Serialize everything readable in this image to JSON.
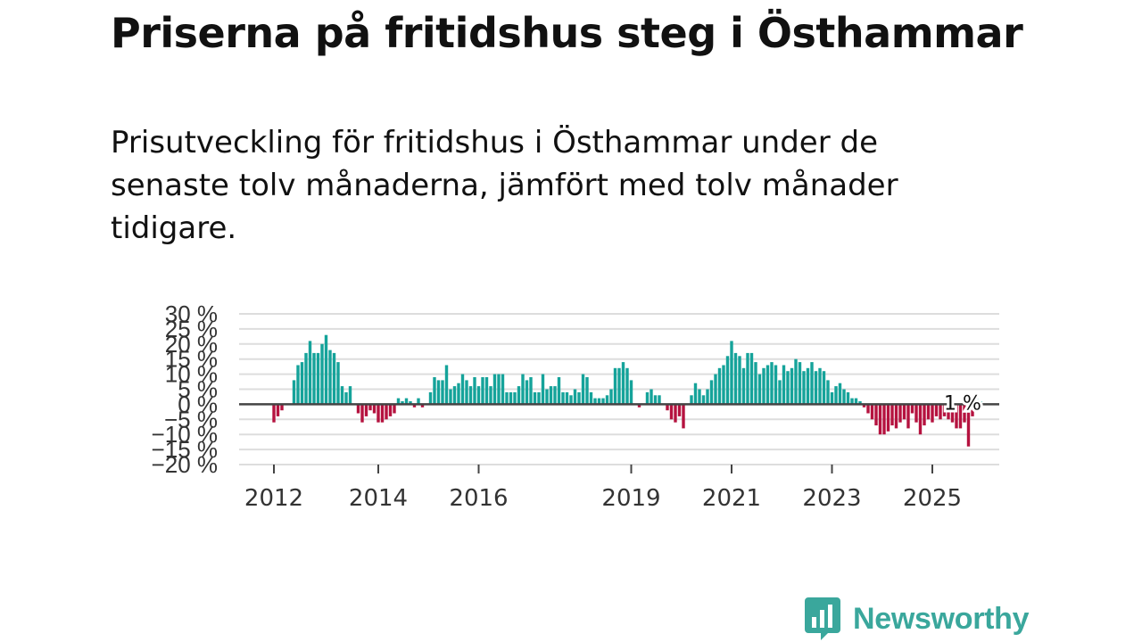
{
  "title": "Priserna på fritidshus steg i Östhammar",
  "subtitle": "Prisutveckling för fritidshus i Östhammar under de senaste tolv månaderna, jämfört med tolv månader tidigare.",
  "brand": "Newsworthy",
  "colors": {
    "positive": "#15a39a",
    "negative": "#b5123f",
    "grid": "#dddddd",
    "zero": "#444444",
    "text": "#333333",
    "brand": "#3aa79c"
  },
  "chart_data": {
    "type": "bar",
    "title": "",
    "xlabel": "",
    "ylabel": "",
    "ylim": [
      -20,
      30
    ],
    "y_ticks": [
      30,
      25,
      20,
      15,
      10,
      5,
      0,
      -5,
      -10,
      -15,
      -20
    ],
    "y_tick_labels": [
      "30 %",
      "25 %",
      "20 %",
      "15 %",
      "10 %",
      "5 %",
      "0 %",
      "−5 %",
      "−10 %",
      "−15 %",
      "−20 %"
    ],
    "x_tick_labels": [
      {
        "label": "2012",
        "index": 0
      },
      {
        "label": "2014",
        "index": 26
      },
      {
        "label": "2016",
        "index": 51
      },
      {
        "label": "2019",
        "index": 89
      },
      {
        "label": "2021",
        "index": 114
      },
      {
        "label": "2023",
        "index": 139
      },
      {
        "label": "2025",
        "index": 164
      }
    ],
    "annotation": {
      "text": "1 %",
      "index": 172
    },
    "grid": true,
    "values": [
      -6,
      -4,
      -2,
      0,
      0,
      8,
      13,
      14,
      17,
      21,
      17,
      17,
      20,
      23,
      18,
      17,
      14,
      6,
      4,
      6,
      0,
      -3,
      -6,
      -4,
      -2,
      -3,
      -6,
      -6,
      -5,
      -4,
      -3,
      2,
      1,
      2,
      1,
      -1,
      2,
      -1,
      0,
      4,
      9,
      8,
      8,
      13,
      5,
      6,
      7,
      10,
      8,
      6,
      9,
      6,
      9,
      9,
      6,
      10,
      10,
      10,
      4,
      4,
      4,
      6,
      10,
      8,
      9,
      4,
      4,
      10,
      5,
      6,
      6,
      9,
      4,
      4,
      3,
      5,
      4,
      10,
      9,
      4,
      2,
      2,
      2,
      3,
      5,
      12,
      12,
      14,
      12,
      8,
      0,
      -1,
      0,
      4,
      5,
      3,
      3,
      0,
      -2,
      -5,
      -6,
      -4,
      -8,
      0,
      3,
      7,
      5,
      3,
      5,
      8,
      10,
      12,
      13,
      16,
      21,
      17,
      16,
      12,
      17,
      17,
      14,
      10,
      12,
      13,
      14,
      13,
      8,
      13,
      11,
      12,
      15,
      14,
      11,
      12,
      14,
      11,
      12,
      11,
      8,
      4,
      6,
      7,
      5,
      4,
      2,
      2,
      1,
      -1,
      -3,
      -5,
      -7,
      -10,
      -10,
      -9,
      -7,
      -8,
      -6,
      -5,
      -8,
      -3,
      -6,
      -10,
      -7,
      -5,
      -6,
      -4,
      -5,
      -4,
      -5,
      -6,
      -8,
      -8,
      -6,
      -14,
      -4,
      3,
      1
    ]
  }
}
